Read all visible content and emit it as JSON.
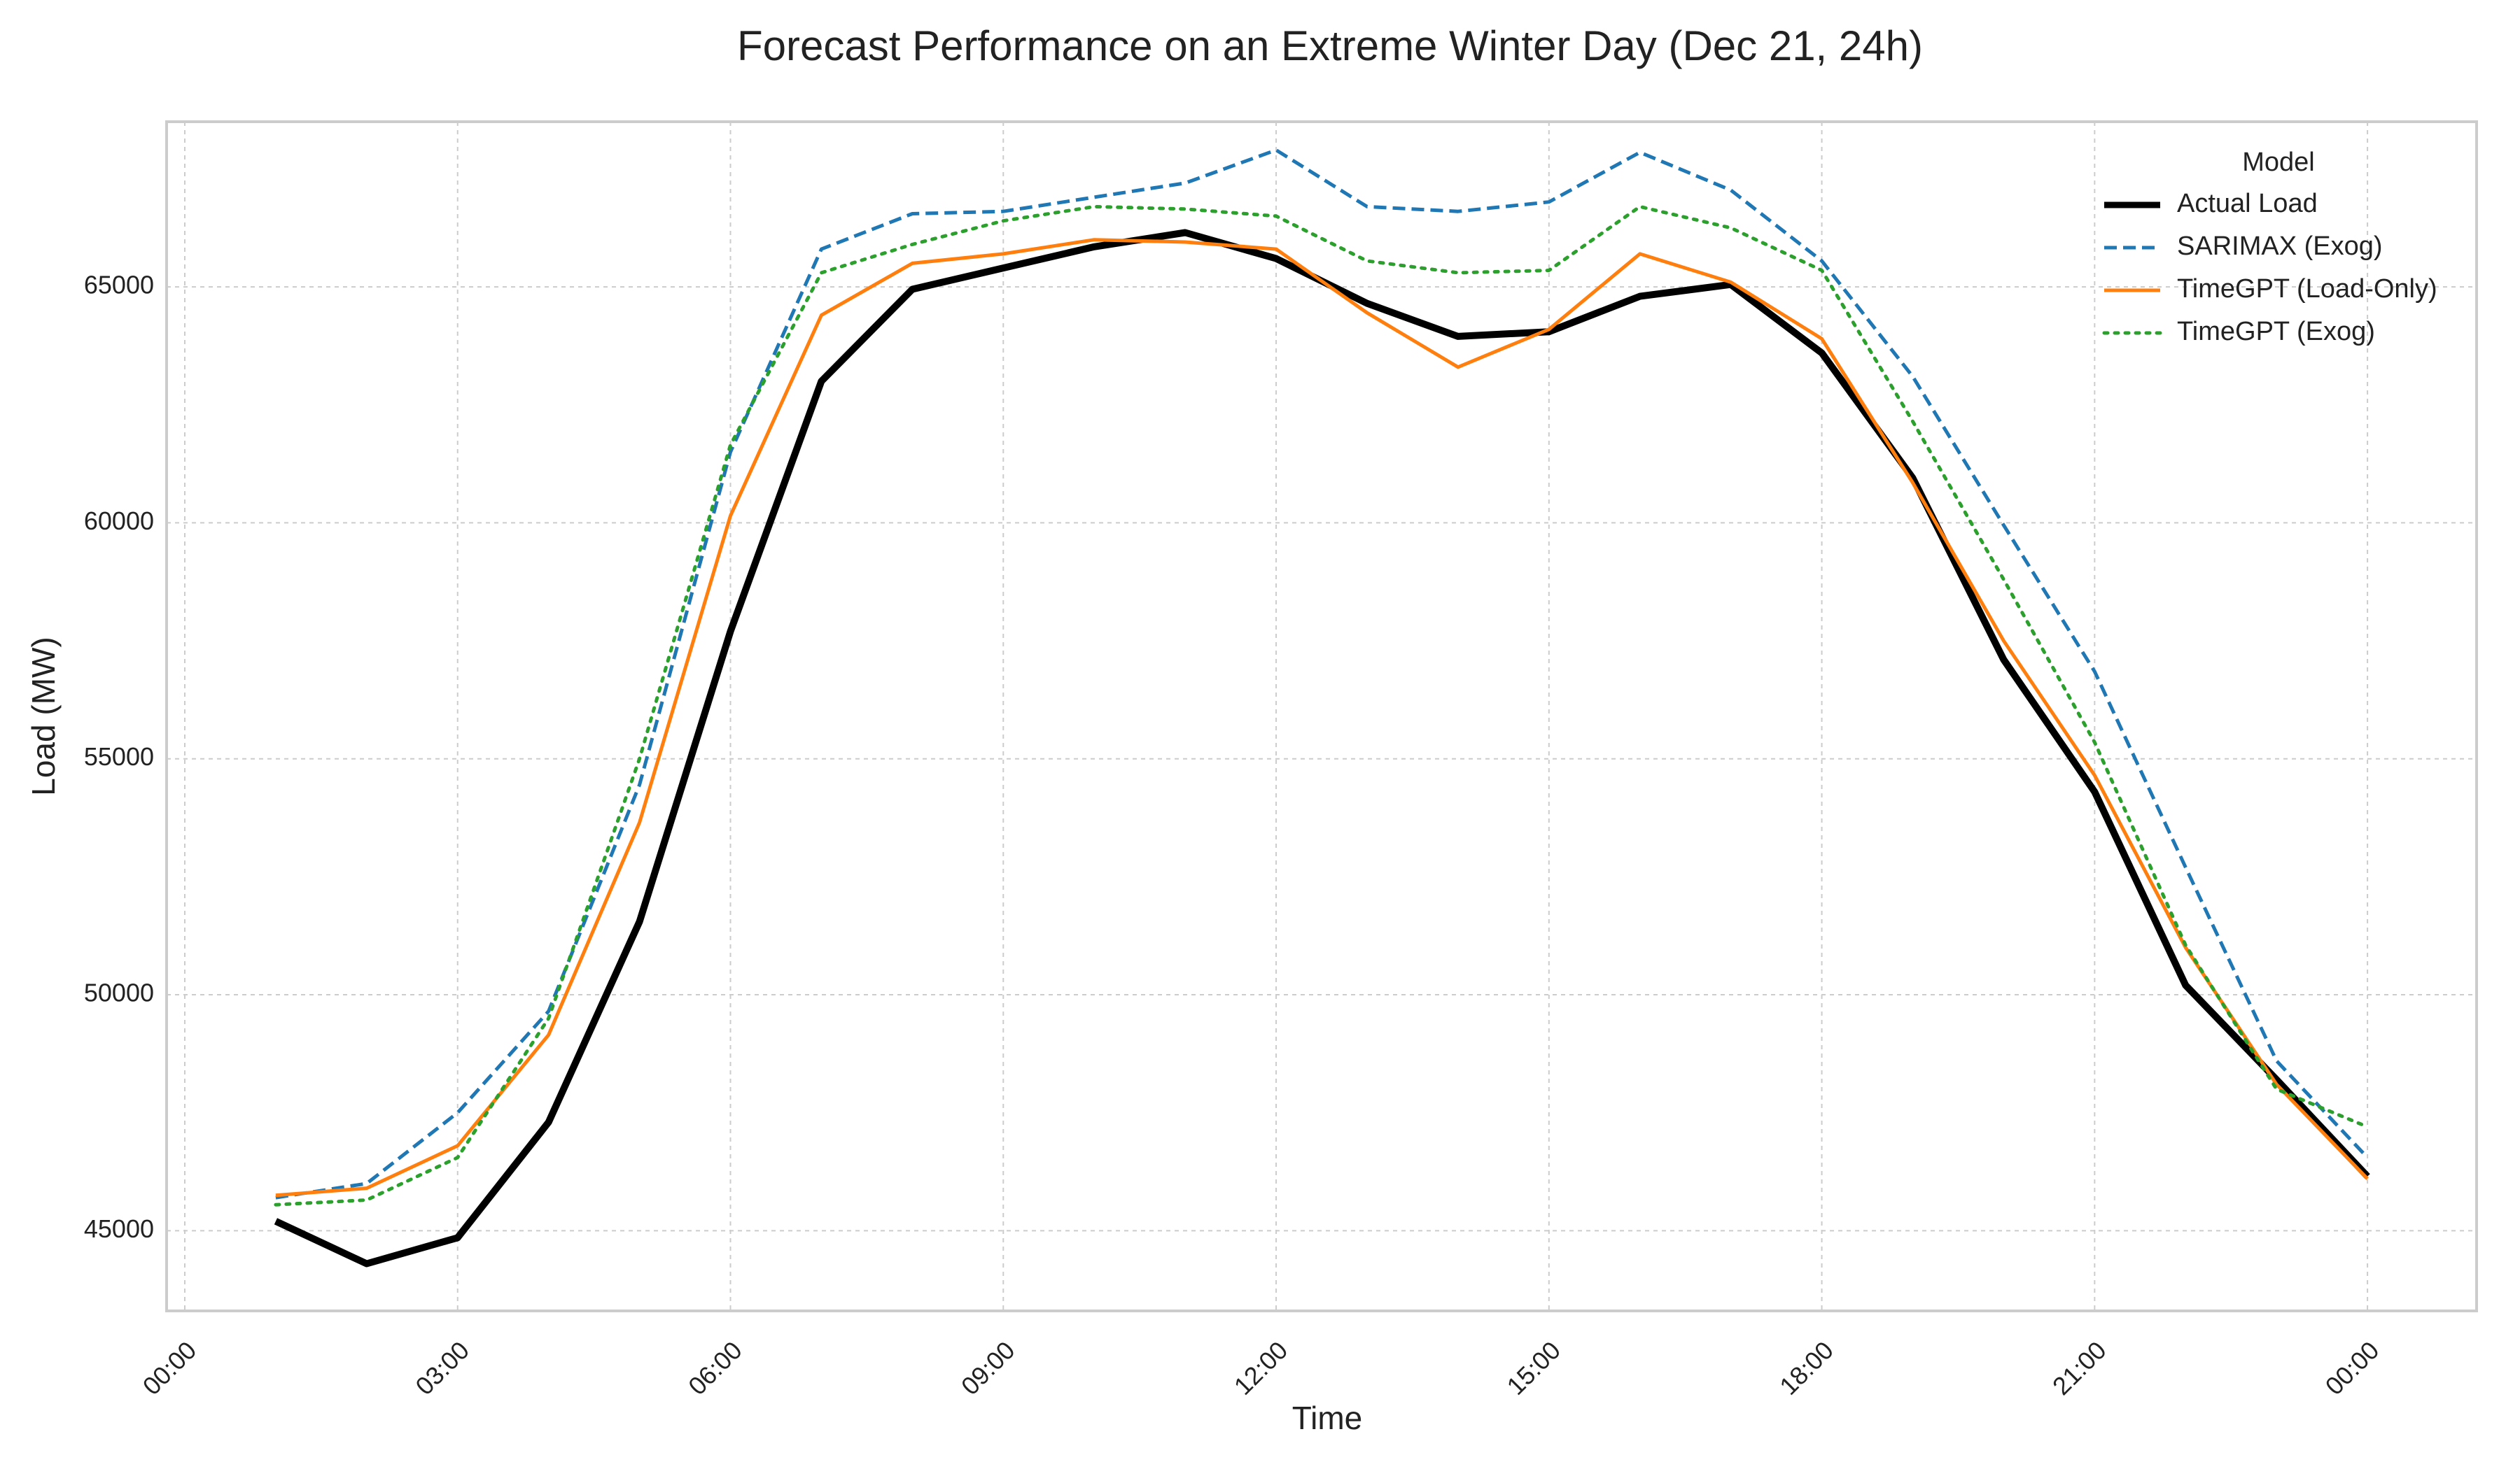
{
  "chart_data": {
    "type": "line",
    "title": "Forecast Performance on an Extreme Winter Day (Dec 21, 24h)",
    "xlabel": "Time",
    "ylabel": "Load (MW)",
    "x_ticks": [
      "00:00",
      "03:00",
      "06:00",
      "09:00",
      "12:00",
      "15:00",
      "18:00",
      "21:00",
      "00:00"
    ],
    "x_tick_hours": [
      0,
      3,
      6,
      9,
      12,
      15,
      18,
      21,
      24
    ],
    "y_ticks": [
      45000,
      50000,
      55000,
      60000,
      65000
    ],
    "xlim": [
      -0.2,
      25.2
    ],
    "ylim": [
      43300,
      68500
    ],
    "grid": true,
    "legend": {
      "title": "Model",
      "position": "top-right"
    },
    "x_hours": [
      1,
      2,
      3,
      4,
      5,
      6,
      7,
      8,
      9,
      10,
      11,
      12,
      13,
      14,
      15,
      16,
      17,
      18,
      19,
      20,
      21,
      22,
      23,
      24
    ],
    "series": [
      {
        "name": "Actual Load",
        "color": "#000000",
        "style": "solid-thick",
        "values": [
          45200,
          44300,
          44850,
          47300,
          51550,
          57700,
          63000,
          64950,
          65400,
          65850,
          66150,
          65600,
          64650,
          63950,
          64050,
          64800,
          65050,
          63600,
          60950,
          57100,
          54300,
          50200,
          48200,
          46150
        ]
      },
      {
        "name": "SARIMAX (Exog)",
        "color": "#1f77b4",
        "style": "dashed",
        "values": [
          45700,
          46000,
          47500,
          49650,
          54450,
          61500,
          65800,
          66550,
          66600,
          66900,
          67200,
          67900,
          66700,
          66600,
          66800,
          67850,
          67050,
          65550,
          63100,
          59950,
          56850,
          52700,
          48600,
          46550
        ]
      },
      {
        "name": "TimeGPT (Load-Only)",
        "color": "#ff7f0e",
        "style": "solid",
        "values": [
          45750,
          45900,
          46800,
          49150,
          53650,
          60150,
          64400,
          65500,
          65700,
          66000,
          65950,
          65800,
          64450,
          63300,
          64100,
          65700,
          65100,
          63900,
          60850,
          57500,
          54650,
          51000,
          48100,
          46100
        ]
      },
      {
        "name": "TimeGPT (Exog)",
        "color": "#2ca02c",
        "style": "dotted",
        "values": [
          45550,
          45650,
          46550,
          49500,
          55000,
          61650,
          65300,
          65900,
          66400,
          66700,
          66650,
          66500,
          65550,
          65300,
          65350,
          66700,
          66250,
          65350,
          62150,
          58800,
          55350,
          51050,
          48000,
          47200
        ]
      }
    ]
  }
}
